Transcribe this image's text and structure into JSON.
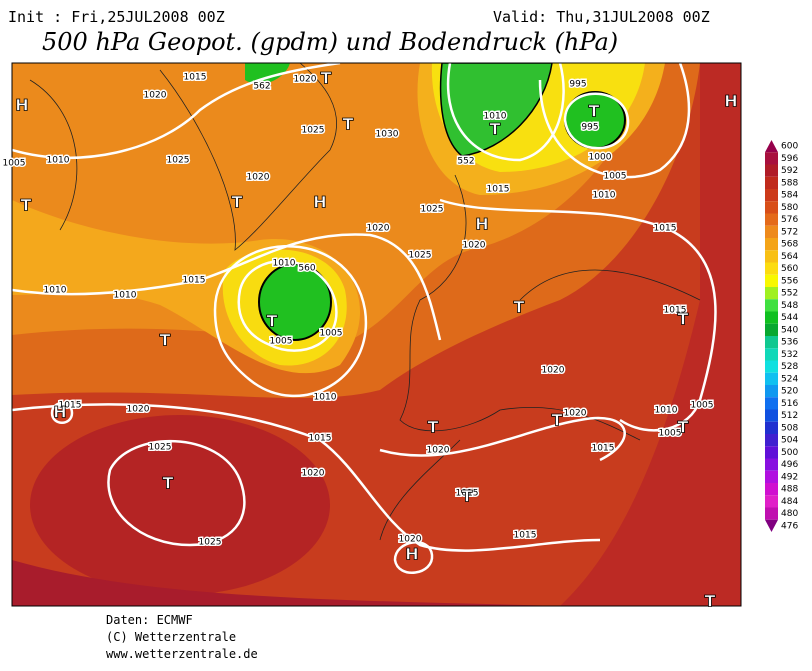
{
  "header": {
    "init": "Init : Fri,25JUL2008 00Z",
    "valid": "Valid: Thu,31JUL2008 00Z",
    "title": "500 hPa Geopot. (gpdm) und Bodendruck (hPa)"
  },
  "map": {
    "isobar_labels": [
      "1015",
      "1020",
      "1020",
      "1025",
      "1030",
      "1010",
      "995",
      "995",
      "1000",
      "1005",
      "1010",
      "1015",
      "1015",
      "1025",
      "1010",
      "1020",
      "1025",
      "1020",
      "1025",
      "1020",
      "1015",
      "1010",
      "1010",
      "1010",
      "1005",
      "1005",
      "1010",
      "1015",
      "1015",
      "1020",
      "1020",
      "1020",
      "1010",
      "1005",
      "1005",
      "1015",
      "1020",
      "1015",
      "1025",
      "1020",
      "1015",
      "1025",
      "1020",
      "1015",
      "1005",
      "562",
      "552",
      "560"
    ],
    "pressure_centers": [
      "H",
      "H",
      "H",
      "T",
      "T",
      "T",
      "T",
      "T",
      "T",
      "T",
      "T",
      "H",
      "T",
      "H",
      "T",
      "T",
      "T",
      "T",
      "T",
      "H",
      "T",
      "T"
    ]
  },
  "colorbar": {
    "ticks": [
      600,
      596,
      592,
      588,
      584,
      580,
      576,
      572,
      568,
      564,
      560,
      556,
      552,
      548,
      544,
      540,
      536,
      532,
      528,
      524,
      520,
      516,
      512,
      508,
      504,
      500,
      496,
      492,
      488,
      484,
      480,
      476
    ],
    "colors": [
      "#96004b",
      "#a8103e",
      "#b01c28",
      "#c02a1c",
      "#cc3a1a",
      "#d84e18",
      "#e46a1a",
      "#ee8a1c",
      "#f4a418",
      "#f8c014",
      "#fcdc10",
      "#f8f800",
      "#a0f020",
      "#40e040",
      "#10c020",
      "#08a830",
      "#10c890",
      "#10d8b8",
      "#10e0e0",
      "#10c0f0",
      "#1098f0",
      "#1070f0",
      "#1050e0",
      "#2030d0",
      "#4020d0",
      "#6010d8",
      "#8810e0",
      "#b010e0",
      "#d010d0",
      "#e020c8",
      "#c010b0",
      "#800080"
    ]
  },
  "footer": {
    "source": "Daten: ECMWF",
    "copyright": "(C) Wetterzentrale",
    "url": "www.wetterzentrale.de"
  }
}
